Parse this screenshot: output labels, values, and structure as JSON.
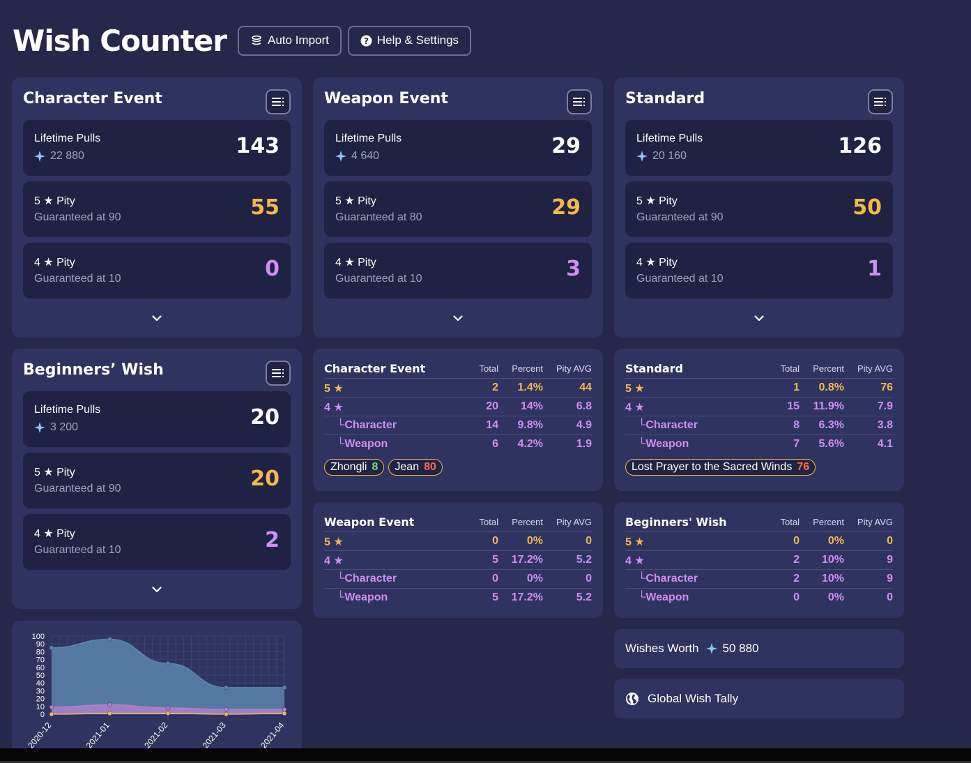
{
  "app": {
    "title": "Wish Counter",
    "auto_import_label": "Auto Import",
    "help_label": "Help & Settings"
  },
  "colors": {
    "background": "#25284a",
    "panel": "#2f3360",
    "card": "#1f2242",
    "five_star": "#f5b84c",
    "four_star": "#d08ef0",
    "primogem": "#8fc8f0"
  },
  "banners": [
    {
      "title": "Character Event",
      "lifetime_label": "Lifetime Pulls",
      "lifetime_sub": "22 880",
      "lifetime_value": "143",
      "five_label": "5 ★ Pity",
      "five_sub": "Guaranteed at 90",
      "five_value": "55",
      "four_label": "4 ★ Pity",
      "four_sub": "Guaranteed at 10",
      "four_value": "0"
    },
    {
      "title": "Weapon Event",
      "lifetime_label": "Lifetime Pulls",
      "lifetime_sub": "4 640",
      "lifetime_value": "29",
      "five_label": "5 ★ Pity",
      "five_sub": "Guaranteed at 80",
      "five_value": "29",
      "four_label": "4 ★ Pity",
      "four_sub": "Guaranteed at 10",
      "four_value": "3"
    },
    {
      "title": "Standard",
      "lifetime_label": "Lifetime Pulls",
      "lifetime_sub": "20 160",
      "lifetime_value": "126",
      "five_label": "5 ★ Pity",
      "five_sub": "Guaranteed at 90",
      "five_value": "50",
      "four_label": "4 ★ Pity",
      "four_sub": "Guaranteed at 10",
      "four_value": "1"
    },
    {
      "title": "Beginners’ Wish",
      "lifetime_label": "Lifetime Pulls",
      "lifetime_sub": "3 200",
      "lifetime_value": "20",
      "five_label": "5 ★ Pity",
      "five_sub": "Guaranteed at 90",
      "five_value": "20",
      "four_label": "4 ★ Pity",
      "four_sub": "Guaranteed at 10",
      "four_value": "2"
    }
  ],
  "stats_headers": {
    "total": "Total",
    "percent": "Percent",
    "pity_avg": "Pity AVG"
  },
  "stats": [
    {
      "title": "Character Event",
      "rows": [
        {
          "name": "5 ★",
          "total": "2",
          "percent": "1.4%",
          "pity": "44"
        },
        {
          "name": "4 ★",
          "total": "20",
          "percent": "14%",
          "pity": "6.8"
        },
        {
          "name": "└Character",
          "total": "14",
          "percent": "9.8%",
          "pity": "4.9"
        },
        {
          "name": "└Weapon",
          "total": "6",
          "percent": "4.2%",
          "pity": "1.9"
        }
      ],
      "tags": [
        {
          "name": "Zhongli",
          "pity": "8"
        },
        {
          "name": "Jean",
          "pity": "80"
        }
      ]
    },
    {
      "title": "Standard",
      "rows": [
        {
          "name": "5 ★",
          "total": "1",
          "percent": "0.8%",
          "pity": "76"
        },
        {
          "name": "4 ★",
          "total": "15",
          "percent": "11.9%",
          "pity": "7.9"
        },
        {
          "name": "└Character",
          "total": "8",
          "percent": "6.3%",
          "pity": "3.8"
        },
        {
          "name": "└Weapon",
          "total": "7",
          "percent": "5.6%",
          "pity": "4.1"
        }
      ],
      "tags": [
        {
          "name": "Lost Prayer to the Sacred Winds",
          "pity": "76"
        }
      ]
    },
    {
      "title": "Weapon Event",
      "rows": [
        {
          "name": "5 ★",
          "total": "0",
          "percent": "0%",
          "pity": "0"
        },
        {
          "name": "4 ★",
          "total": "5",
          "percent": "17.2%",
          "pity": "5.2"
        },
        {
          "name": "└Character",
          "total": "0",
          "percent": "0%",
          "pity": "0"
        },
        {
          "name": "└Weapon",
          "total": "5",
          "percent": "17.2%",
          "pity": "5.2"
        }
      ]
    },
    {
      "title": "Beginners' Wish",
      "rows": [
        {
          "name": "5 ★",
          "total": "0",
          "percent": "0%",
          "pity": "0"
        },
        {
          "name": "4 ★",
          "total": "2",
          "percent": "10%",
          "pity": "9"
        },
        {
          "name": "└Character",
          "total": "2",
          "percent": "10%",
          "pity": "9"
        },
        {
          "name": "└Weapon",
          "total": "0",
          "percent": "0%",
          "pity": "0"
        }
      ]
    }
  ],
  "wishes_worth": {
    "label": "Wishes Worth",
    "value": "50 880"
  },
  "global_tally": {
    "label": "Global Wish Tally"
  },
  "chart_data": {
    "type": "area",
    "x": [
      "2020-12",
      "2021-01",
      "2021-02",
      "2021-03",
      "2021-04"
    ],
    "ylim": [
      0,
      100
    ],
    "yticks": [
      0,
      10,
      20,
      30,
      40,
      50,
      60,
      70,
      80,
      90,
      100
    ],
    "grid": true,
    "series": [
      {
        "color": "#5a86ad",
        "values": [
          85,
          96,
          65,
          34,
          34
        ]
      },
      {
        "color": "#b27fd0",
        "values": [
          9,
          12,
          8,
          6,
          6
        ]
      },
      {
        "color": "#f5b84c",
        "values": [
          0,
          1,
          1,
          0,
          1
        ]
      }
    ]
  }
}
